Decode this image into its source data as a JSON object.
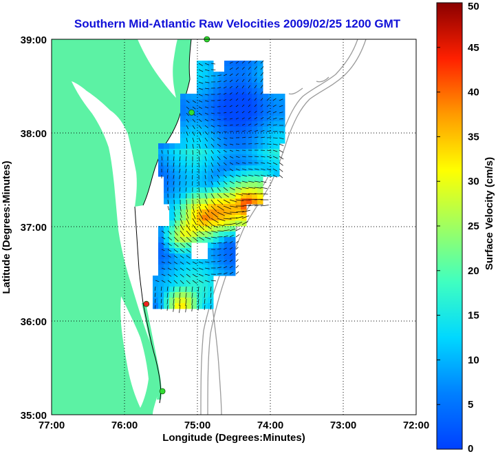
{
  "title": "Southern Mid-Atlantic Raw Velocities 2009/02/25 1200 GMT",
  "x_axis": {
    "label": "Longitude (Degrees:Minutes)",
    "ticks": [
      "77:00",
      "76:00",
      "75:00",
      "74:00",
      "73:00",
      "72:00"
    ]
  },
  "y_axis": {
    "label": "Latitude (Degrees:Minutes)",
    "ticks": [
      "39:00",
      "38:00",
      "37:00",
      "36:00",
      "35:00"
    ]
  },
  "colorbar": {
    "label": "Surface Velocity (cm/s)",
    "ticks": [
      "0",
      "5",
      "10",
      "15",
      "20",
      "25",
      "30",
      "35",
      "40",
      "45",
      "50"
    ],
    "min": 0,
    "max": 50,
    "colormap": "jet"
  },
  "colors": {
    "title": "#1010d8",
    "land": "#5cf2a4",
    "station": "#33dd33",
    "station_alert": "#ee2222",
    "bathymetry": "#9a9a9a"
  },
  "map_extent": {
    "lon_min": -77.0,
    "lon_max": -72.0,
    "lat_min": 35.0,
    "lat_max": 39.0
  },
  "stations": [
    {
      "lon": -74.87,
      "lat": 39.0,
      "status": "normal"
    },
    {
      "lon": -75.08,
      "lat": 38.22,
      "status": "normal"
    },
    {
      "lon": -75.7,
      "lat": 36.18,
      "status": "alert"
    },
    {
      "lon": -75.48,
      "lat": 35.25,
      "status": "normal"
    }
  ]
}
